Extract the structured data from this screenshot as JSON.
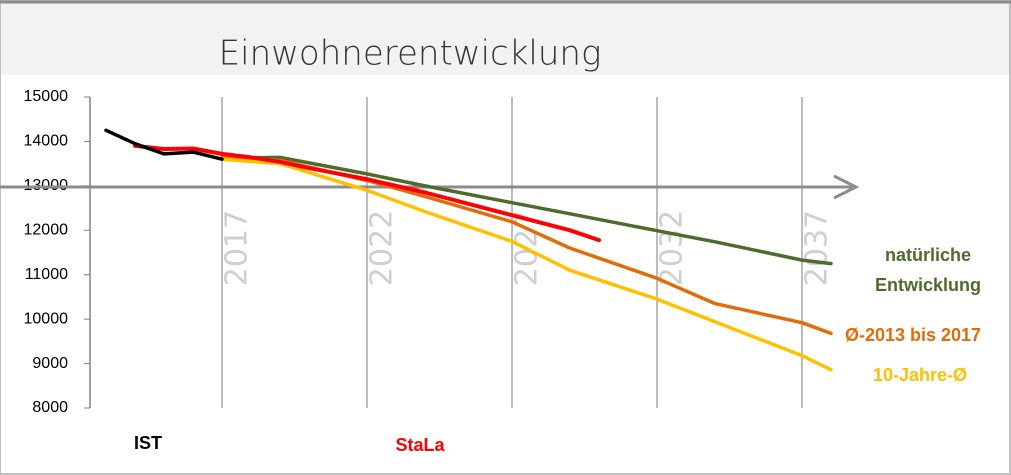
{
  "chart_data": {
    "type": "line",
    "title": "Einwohnerentwicklung",
    "xlim": [
      2012.5,
      2039.5
    ],
    "xticks": [
      2017,
      2022,
      2027,
      2032,
      2037
    ],
    "ylim": [
      8000,
      15000
    ],
    "yticks": [
      8000,
      9000,
      10000,
      11000,
      12000,
      13000,
      14000,
      15000
    ],
    "grid": true,
    "series": [
      {
        "name": "IST",
        "color": "#000000",
        "x": [
          2013,
          2014,
          2015,
          2016,
          2017
        ],
        "values": [
          14250,
          13950,
          13720,
          13760,
          13600
        ]
      },
      {
        "name": "StaLa",
        "color": "#ff0000",
        "x": [
          2014,
          2015,
          2016,
          2017,
          2018,
          2019,
          2020,
          2022,
          2024,
          2027,
          2029,
          2030
        ],
        "values": [
          13900,
          13830,
          13840,
          13720,
          13640,
          13540,
          13400,
          13150,
          12850,
          12340,
          12000,
          11780
        ]
      },
      {
        "name": "natürliche Entwicklung",
        "color": "#4f6b2c",
        "x": [
          2017,
          2019,
          2022,
          2024,
          2027,
          2029,
          2032,
          2034,
          2037,
          2038
        ],
        "values": [
          13620,
          13640,
          13270,
          13000,
          12620,
          12370,
          11990,
          11740,
          11330,
          11250
        ]
      },
      {
        "name": "Ø-2013 bis 2017",
        "color": "#e36c0a",
        "x": [
          2017,
          2019,
          2022,
          2024,
          2027,
          2029,
          2032,
          2034,
          2037,
          2038
        ],
        "values": [
          13650,
          13570,
          13120,
          12760,
          12190,
          11600,
          10920,
          10350,
          9920,
          9680
        ]
      },
      {
        "name": "10-Jahre-Ø",
        "color": "#ffc000",
        "x": [
          2017,
          2019,
          2022,
          2024,
          2027,
          2029,
          2032,
          2034,
          2037,
          2038
        ],
        "values": [
          13600,
          13500,
          12900,
          12420,
          11750,
          11100,
          10450,
          9940,
          9180,
          8860
        ]
      }
    ]
  }
}
